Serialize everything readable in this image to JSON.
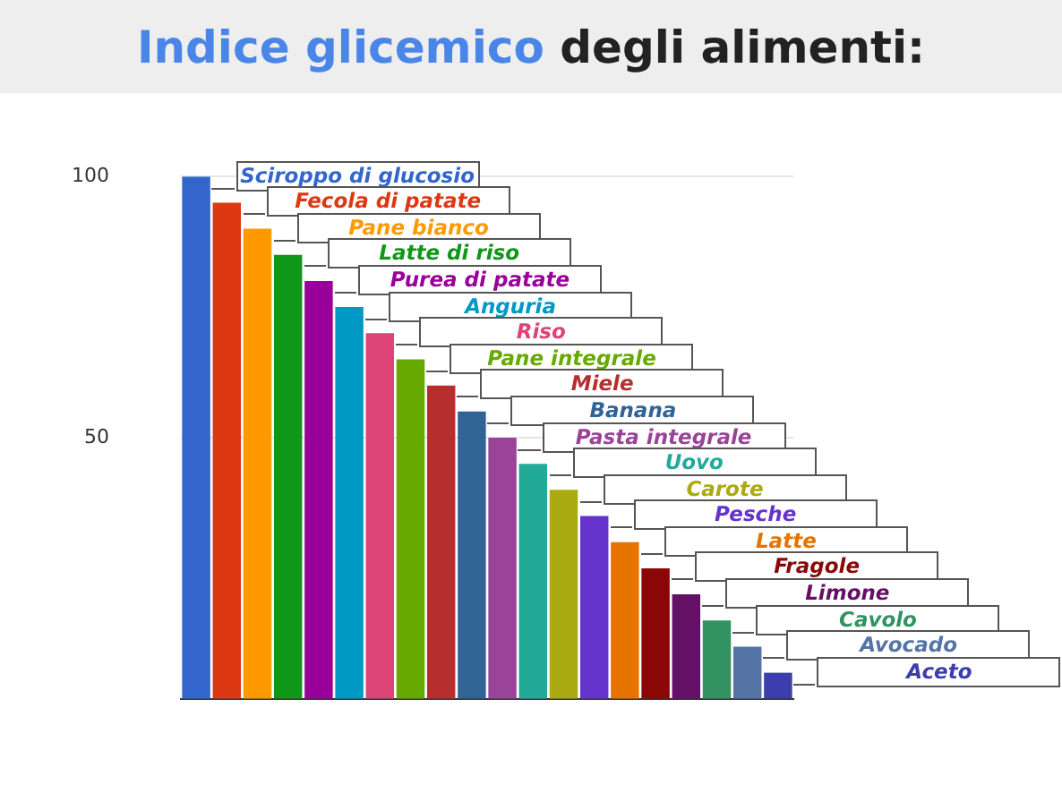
{
  "chart_data": {
    "type": "bar",
    "title": "Indice glicemico degli alimenti:",
    "categories": [
      null,
      null,
      null,
      null,
      null,
      null,
      null,
      null,
      null,
      null,
      null,
      null,
      null,
      null,
      null,
      null,
      null,
      null,
      null,
      null
    ],
    "series": [
      {
        "name": "Sciroppo di glucosio",
        "color": "#3366cc",
        "values": [
          100,
          null,
          null,
          null,
          null,
          null,
          null,
          null,
          null,
          null,
          null,
          null,
          null,
          null,
          null,
          null,
          null,
          null,
          null,
          null
        ]
      },
      {
        "name": "Fecola di patate",
        "color": "#dc3912",
        "values": [
          null,
          95,
          null,
          null,
          null,
          null,
          null,
          null,
          null,
          null,
          null,
          null,
          null,
          null,
          null,
          null,
          null,
          null,
          null,
          null
        ]
      },
      {
        "name": "Pane bianco",
        "color": "#ff9900",
        "values": [
          null,
          null,
          90,
          null,
          null,
          null,
          null,
          null,
          null,
          null,
          null,
          null,
          null,
          null,
          null,
          null,
          null,
          null,
          null,
          null
        ]
      },
      {
        "name": "Latte di riso",
        "color": "#109618",
        "values": [
          null,
          null,
          null,
          85,
          null,
          null,
          null,
          null,
          null,
          null,
          null,
          null,
          null,
          null,
          null,
          null,
          null,
          null,
          null,
          null
        ]
      },
      {
        "name": "Purea di patate",
        "color": "#990099",
        "values": [
          null,
          null,
          null,
          null,
          80,
          null,
          null,
          null,
          null,
          null,
          null,
          null,
          null,
          null,
          null,
          null,
          null,
          null,
          null,
          null
        ]
      },
      {
        "name": "Anguria",
        "color": "#0099c6",
        "values": [
          null,
          null,
          null,
          null,
          null,
          75,
          null,
          null,
          null,
          null,
          null,
          null,
          null,
          null,
          null,
          null,
          null,
          null,
          null,
          null
        ]
      },
      {
        "name": "Riso",
        "color": "#dd4477",
        "values": [
          null,
          null,
          null,
          null,
          null,
          null,
          70,
          null,
          null,
          null,
          null,
          null,
          null,
          null,
          null,
          null,
          null,
          null,
          null,
          null
        ]
      },
      {
        "name": "Pane integrale",
        "color": "#66aa00",
        "values": [
          null,
          null,
          null,
          null,
          null,
          null,
          null,
          65,
          null,
          null,
          null,
          null,
          null,
          null,
          null,
          null,
          null,
          null,
          null,
          null
        ]
      },
      {
        "name": "Miele",
        "color": "#b82e2e",
        "values": [
          null,
          null,
          null,
          null,
          null,
          null,
          null,
          null,
          60,
          null,
          null,
          null,
          null,
          null,
          null,
          null,
          null,
          null,
          null,
          null
        ]
      },
      {
        "name": "Banana",
        "color": "#316395",
        "values": [
          null,
          null,
          null,
          null,
          null,
          null,
          null,
          null,
          null,
          55,
          null,
          null,
          null,
          null,
          null,
          null,
          null,
          null,
          null,
          null
        ]
      },
      {
        "name": "Pasta integrale",
        "color": "#994499",
        "values": [
          null,
          null,
          null,
          null,
          null,
          null,
          null,
          null,
          null,
          null,
          50,
          null,
          null,
          null,
          null,
          null,
          null,
          null,
          null,
          null
        ]
      },
      {
        "name": "Uovo",
        "color": "#22aa99",
        "values": [
          null,
          null,
          null,
          null,
          null,
          null,
          null,
          null,
          null,
          null,
          null,
          45,
          null,
          null,
          null,
          null,
          null,
          null,
          null,
          null
        ]
      },
      {
        "name": "Carote",
        "color": "#aaaa11",
        "values": [
          null,
          null,
          null,
          null,
          null,
          null,
          null,
          null,
          null,
          null,
          null,
          null,
          40,
          null,
          null,
          null,
          null,
          null,
          null,
          null
        ]
      },
      {
        "name": "Pesche",
        "color": "#6633cc",
        "values": [
          null,
          null,
          null,
          null,
          null,
          null,
          null,
          null,
          null,
          null,
          null,
          null,
          null,
          35,
          null,
          null,
          null,
          null,
          null,
          null
        ]
      },
      {
        "name": "Latte",
        "color": "#e67300",
        "values": [
          null,
          null,
          null,
          null,
          null,
          null,
          null,
          null,
          null,
          null,
          null,
          null,
          null,
          null,
          30,
          null,
          null,
          null,
          null,
          null
        ]
      },
      {
        "name": "Fragole",
        "color": "#8b0707",
        "values": [
          null,
          null,
          null,
          null,
          null,
          null,
          null,
          null,
          null,
          null,
          null,
          null,
          null,
          null,
          null,
          25,
          null,
          null,
          null,
          null
        ]
      },
      {
        "name": "Limone",
        "color": "#651067",
        "values": [
          null,
          null,
          null,
          null,
          null,
          null,
          null,
          null,
          null,
          null,
          null,
          null,
          null,
          null,
          null,
          null,
          20,
          null,
          null,
          null
        ]
      },
      {
        "name": "Cavolo",
        "color": "#329262",
        "values": [
          null,
          null,
          null,
          null,
          null,
          null,
          null,
          null,
          null,
          null,
          null,
          null,
          null,
          null,
          null,
          null,
          null,
          15,
          null,
          null
        ]
      },
      {
        "name": "Avocado",
        "color": "#5574a6",
        "values": [
          null,
          null,
          null,
          null,
          null,
          null,
          null,
          null,
          null,
          null,
          null,
          null,
          null,
          null,
          null,
          null,
          null,
          null,
          10,
          null
        ]
      },
      {
        "name": "Aceto",
        "color": "#3b3eac",
        "values": [
          null,
          null,
          null,
          null,
          null,
          null,
          null,
          null,
          null,
          null,
          null,
          null,
          null,
          null,
          null,
          null,
          null,
          null,
          null,
          5
        ]
      }
    ],
    "ylim": [
      0,
      100
    ],
    "yticks": [
      50,
      100
    ],
    "grid": "y",
    "tick_labels": "y",
    "legend": false
  }
}
